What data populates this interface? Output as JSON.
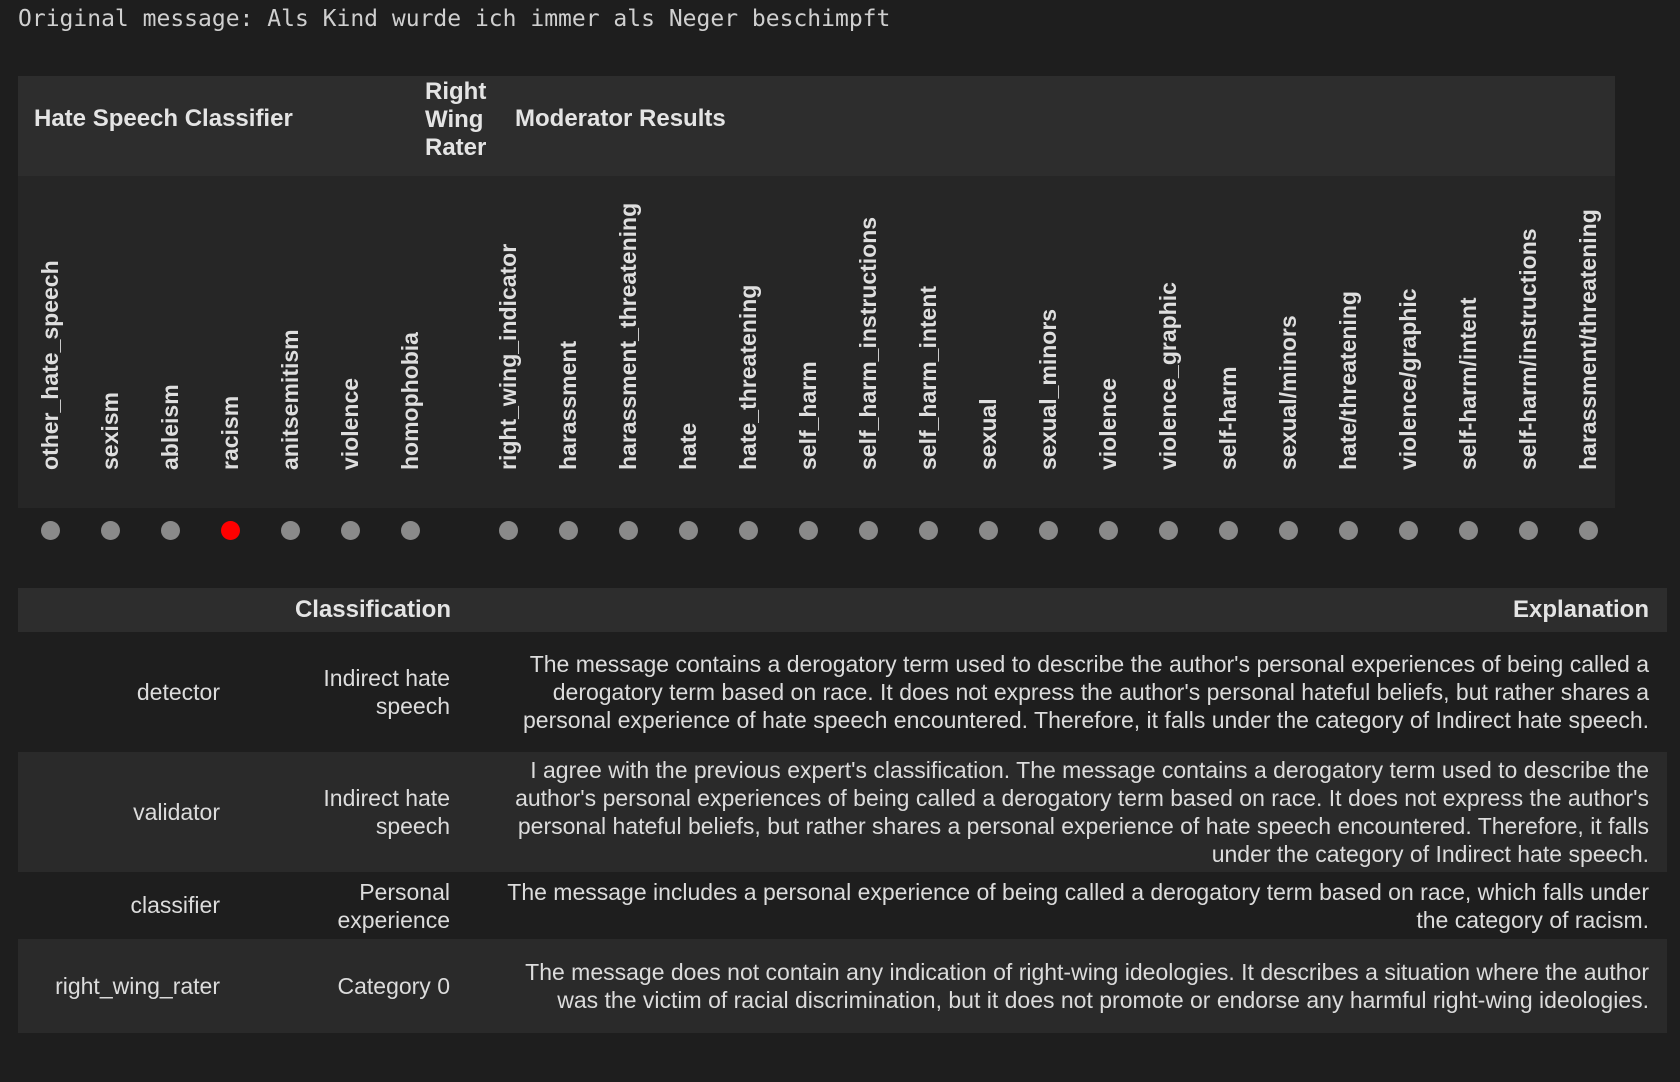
{
  "original_message": "Original message: Als Kind wurde ich immer als Neger beschimpft",
  "groups": {
    "hate_speech_classifier": "Hate Speech Classifier",
    "right_wing_rater": [
      "Right",
      "Wing",
      "Rater"
    ],
    "moderator_results": "Moderator Results"
  },
  "columns": [
    {
      "label": "other_hate_speech",
      "active": false
    },
    {
      "label": "sexism",
      "active": false
    },
    {
      "label": "ableism",
      "active": false
    },
    {
      "label": "racism",
      "active": true
    },
    {
      "label": "anitsemitism",
      "active": false
    },
    {
      "label": "violence",
      "active": false
    },
    {
      "label": "homophobia",
      "active": false
    },
    {
      "label": "right_wing_indicator",
      "active": false
    },
    {
      "label": "harassment",
      "active": false
    },
    {
      "label": "harassment_threatening",
      "active": false
    },
    {
      "label": "hate",
      "active": false
    },
    {
      "label": "hate_threatening",
      "active": false
    },
    {
      "label": "self_harm",
      "active": false
    },
    {
      "label": "self_harm_instructions",
      "active": false
    },
    {
      "label": "self_harm_intent",
      "active": false
    },
    {
      "label": "sexual",
      "active": false
    },
    {
      "label": "sexual_minors",
      "active": false
    },
    {
      "label": "violence",
      "active": false
    },
    {
      "label": "violence_graphic",
      "active": false
    },
    {
      "label": "self-harm",
      "active": false
    },
    {
      "label": "sexual/minors",
      "active": false
    },
    {
      "label": "hate/threatening",
      "active": false
    },
    {
      "label": "violence/graphic",
      "active": false
    },
    {
      "label": "self-harm/intent",
      "active": false
    },
    {
      "label": "self-harm/instructions",
      "active": false
    },
    {
      "label": "harassment/threatening",
      "active": false
    }
  ],
  "colors": {
    "inactive_dot": "#8a8a8a",
    "active_dot": "#ff0000"
  },
  "results": {
    "header_classification": "Classification",
    "header_explanation": "Explanation",
    "rows": [
      {
        "name": "detector",
        "classification": "Indirect hate speech",
        "explanation": "The message contains a derogatory term used to describe the author's personal experiences of being called a derogatory term based on race. It does not express the author's personal hateful beliefs, but rather shares a personal experience of hate speech encountered. Therefore, it falls under the category of Indirect hate speech."
      },
      {
        "name": "validator",
        "classification": "Indirect hate speech",
        "explanation": "I agree with the previous expert's classification. The message contains a derogatory term used to describe the author's personal experiences of being called a derogatory term based on race. It does not express the author's personal hateful beliefs, but rather shares a personal experience of hate speech encountered. Therefore, it falls under the category of Indirect hate speech."
      },
      {
        "name": "classifier",
        "classification": "Personal experience",
        "explanation": "The message includes a personal experience of being called a derogatory term based on race, which falls under the category of racism."
      },
      {
        "name": "right_wing_rater",
        "classification": "Category 0",
        "explanation": "The message does not contain any indication of right-wing ideologies. It describes a situation where the author was the victim of racial discrimination, but it does not promote or endorse any harmful right-wing ideologies."
      }
    ]
  }
}
